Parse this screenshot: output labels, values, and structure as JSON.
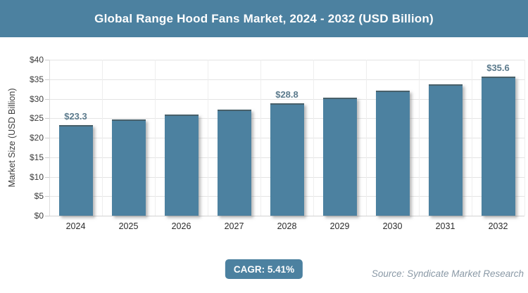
{
  "header": {
    "title": "Global Range Hood Fans Market, 2024 - 2032 (USD Billion)"
  },
  "chart_data": {
    "type": "bar",
    "title": "Global Range Hood Fans Market, 2024 - 2032 (USD Billion)",
    "categories": [
      "2024",
      "2025",
      "2026",
      "2027",
      "2028",
      "2029",
      "2030",
      "2031",
      "2032"
    ],
    "values": [
      23.3,
      24.6,
      25.9,
      27.3,
      28.8,
      30.3,
      32.0,
      33.7,
      35.6
    ],
    "data_labels": [
      "$23.3",
      "",
      "",
      "",
      "$28.8",
      "",
      "",
      "",
      "$35.6"
    ],
    "xlabel": "",
    "ylabel": "Market Size (USD Billion)",
    "ylim": [
      0,
      40
    ],
    "ytick_step": 5,
    "ytick_labels": [
      "$0",
      "$5",
      "$10",
      "$15",
      "$20",
      "$25",
      "$30",
      "$35",
      "$40"
    ],
    "grid": true,
    "legend": "none",
    "bar_color": "#4C81A0"
  },
  "footer": {
    "cagr_label": "CAGR: 5.41%",
    "source": "Source: Syndicate Market Research"
  },
  "colors": {
    "accent": "#4C81A0",
    "data_label": "#5B7A8C",
    "source_text": "#8A99A6",
    "gridline": "#e4e4e4"
  }
}
